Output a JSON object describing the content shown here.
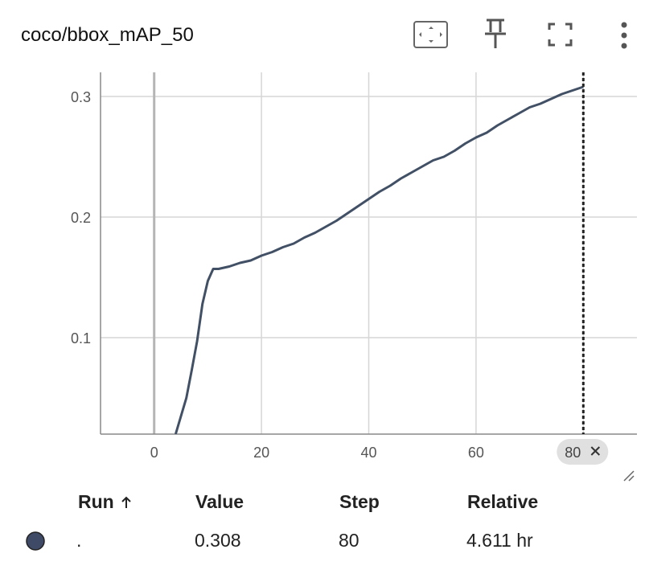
{
  "header": {
    "title": "coco/bbox_mAP_50"
  },
  "chart_data": {
    "type": "line",
    "x": [
      4,
      5,
      6,
      7,
      8,
      9,
      10,
      11,
      12,
      14,
      16,
      18,
      20,
      22,
      24,
      26,
      28,
      30,
      32,
      34,
      36,
      38,
      40,
      42,
      44,
      46,
      48,
      50,
      52,
      54,
      56,
      58,
      60,
      62,
      64,
      66,
      68,
      70,
      72,
      74,
      76,
      78,
      80
    ],
    "values": [
      0.02,
      0.035,
      0.05,
      0.073,
      0.097,
      0.128,
      0.147,
      0.157,
      0.157,
      0.159,
      0.162,
      0.164,
      0.168,
      0.171,
      0.175,
      0.178,
      0.183,
      0.187,
      0.192,
      0.197,
      0.203,
      0.209,
      0.215,
      0.221,
      0.226,
      0.232,
      0.237,
      0.242,
      0.247,
      0.25,
      0.255,
      0.261,
      0.266,
      0.27,
      0.276,
      0.281,
      0.286,
      0.291,
      0.294,
      0.298,
      0.302,
      0.305,
      0.308
    ],
    "color": "#425066",
    "xlim": [
      -10,
      90
    ],
    "xticks": [
      0,
      20,
      40,
      60,
      80
    ],
    "ylim": [
      0.02,
      0.32
    ],
    "yticks": [
      0.1,
      0.2,
      0.3
    ],
    "grid": true,
    "selected_step": 80
  },
  "table": {
    "headers": [
      "Run",
      "Value",
      "Step",
      "Relative"
    ],
    "rows": [
      [
        ".",
        "0.308",
        "80",
        "4.611 hr"
      ]
    ],
    "run_color": "#3f4a66"
  }
}
